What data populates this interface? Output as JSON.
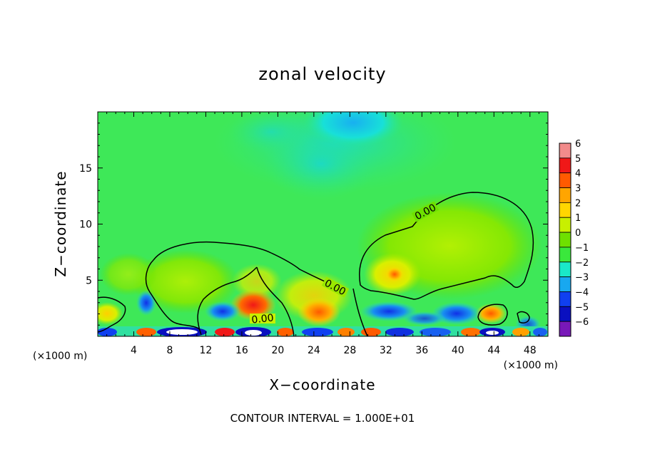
{
  "chart_data": {
    "type": "heatmap",
    "title": "zonal velocity",
    "xlabel": "X−coordinate",
    "ylabel": "Z−coordinate",
    "xunit_left": "(×1000 m)",
    "xunit_right": "(×1000 m)",
    "xlim": [
      0,
      50
    ],
    "ylim": [
      0,
      20
    ],
    "xticks": [
      4,
      8,
      12,
      16,
      20,
      24,
      28,
      32,
      36,
      40,
      44,
      48
    ],
    "xtick_labels": [
      "4",
      "8",
      "12",
      "16",
      "20",
      "24",
      "28",
      "32",
      "36",
      "40",
      "44",
      "48"
    ],
    "yticks": [
      5,
      10,
      15
    ],
    "ytick_labels": [
      "5",
      "10",
      "15"
    ],
    "colorbar": {
      "levels": [
        6,
        5,
        4,
        3,
        2,
        1,
        0,
        -1,
        -2,
        -3,
        -4,
        -5,
        -6
      ],
      "labels": [
        "6",
        "5",
        "4",
        "3",
        "2",
        "1",
        "0",
        "−1",
        "−2",
        "−3",
        "−4",
        "−5",
        "−6"
      ],
      "colors": [
        "#f28b8b",
        "#f01818",
        "#ff5a00",
        "#ffa500",
        "#ffd600",
        "#c8f000",
        "#6ee000",
        "#3ae83c",
        "#1ae8c8",
        "#18a8f0",
        "#1040f0",
        "#0a10c0",
        "#7818b8"
      ]
    },
    "contour_labels": [
      "0.00",
      "0.00",
      "0.00"
    ],
    "note": "CONTOUR INTERVAL = 1.000E+01",
    "grid": false,
    "legend": "right"
  }
}
